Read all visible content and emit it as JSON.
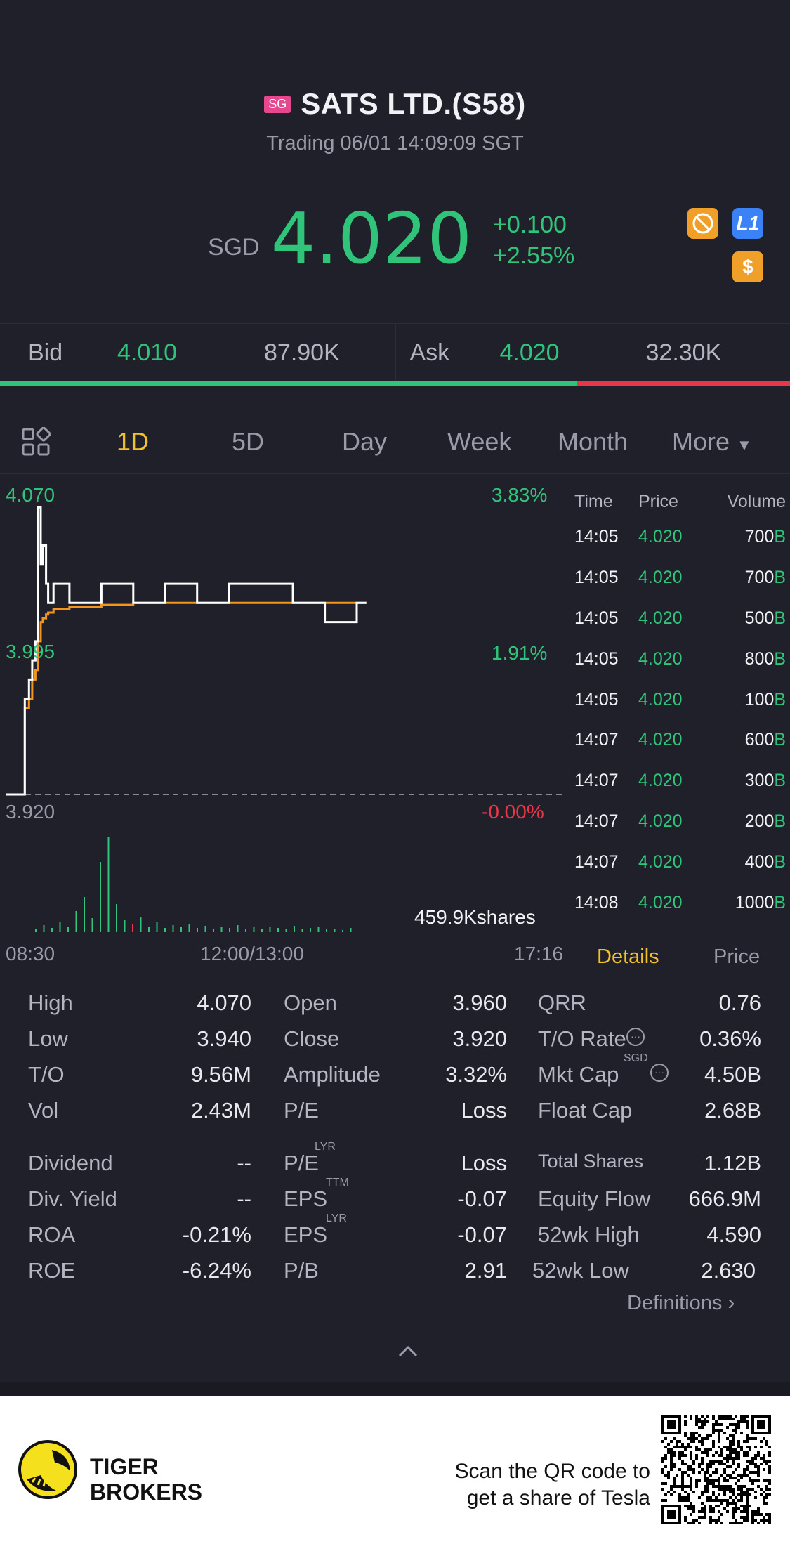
{
  "header": {
    "market_flag": "SG",
    "title": "SATS LTD.(S58)",
    "status": "Trading 06/01 14:09:09 SGT",
    "currency": "SGD",
    "last_price": "4.020",
    "change": "+0.100",
    "change_pct": "+2.55%",
    "badges": [
      {
        "name": "no-short-icon",
        "color": "#f0a028"
      },
      {
        "name": "level1-icon",
        "label": "L1",
        "color": "#3b82f6"
      },
      {
        "name": "dollar-icon",
        "label": "$",
        "color": "#f0a028"
      }
    ]
  },
  "bidask": {
    "bid_label": "Bid",
    "bid_price": "4.010",
    "bid_size": "87.90K",
    "ask_label": "Ask",
    "ask_price": "4.020",
    "ask_size": "32.30K",
    "bid_fraction": 0.73
  },
  "tabs": {
    "grid_icon": "grid-icon",
    "items": [
      "1D",
      "5D",
      "Day",
      "Week",
      "Month",
      "More"
    ],
    "active": "1D"
  },
  "chart": {
    "y_top_price": "4.070",
    "y_mid_price": "3.995",
    "y_base_price": "3.920",
    "y_top_pct": "3.83%",
    "y_mid_pct": "1.91%",
    "y_base_pct": "-0.00%",
    "volume_label": "459.9Kshares",
    "x_start": "08:30",
    "x_mid": "12:00/13:00",
    "x_end": "17:16"
  },
  "chart_data": {
    "type": "line",
    "title": "",
    "xlabel": "",
    "ylabel": "",
    "ylim": [
      3.92,
      4.07
    ],
    "series": [
      {
        "name": "",
        "color": "#ffffff",
        "x": [
          "08:30",
          "08:45",
          "08:48",
          "08:52",
          "08:55",
          "08:58",
          "09:00",
          "09:03",
          "09:05",
          "09:08",
          "09:10",
          "09:15",
          "09:30",
          "10:00",
          "10:30",
          "11:00",
          "11:30",
          "12:00",
          "13:00",
          "13:30",
          "14:00",
          "14:09"
        ],
        "values": [
          3.92,
          3.92,
          3.97,
          3.98,
          3.99,
          4.0,
          4.07,
          4.04,
          4.05,
          4.03,
          4.02,
          4.03,
          4.02,
          4.03,
          4.02,
          4.03,
          4.02,
          4.03,
          4.02,
          4.01,
          4.02,
          4.02
        ]
      },
      {
        "name": "",
        "color": "#f5951e",
        "x": [
          "08:30",
          "08:45",
          "08:48",
          "08:52",
          "08:55",
          "08:58",
          "09:00",
          "09:03",
          "09:05",
          "09:08",
          "09:10",
          "09:15",
          "09:30",
          "10:00",
          "10:30",
          "11:00",
          "11:30",
          "12:00",
          "13:00",
          "13:30",
          "14:00",
          "14:09"
        ],
        "values": [
          3.92,
          3.92,
          3.965,
          3.97,
          3.98,
          3.985,
          4.0,
          4.01,
          4.012,
          4.014,
          4.015,
          4.017,
          4.018,
          4.019,
          4.02,
          4.02,
          4.02,
          4.02,
          4.02,
          4.02,
          4.02,
          4.02
        ]
      }
    ]
  },
  "trades": {
    "headers": [
      "Time",
      "Price",
      "Volume"
    ],
    "rows": [
      {
        "time": "14:05",
        "price": "4.020",
        "vol": "700",
        "side": "B"
      },
      {
        "time": "14:05",
        "price": "4.020",
        "vol": "700",
        "side": "B"
      },
      {
        "time": "14:05",
        "price": "4.020",
        "vol": "500",
        "side": "B"
      },
      {
        "time": "14:05",
        "price": "4.020",
        "vol": "800",
        "side": "B"
      },
      {
        "time": "14:05",
        "price": "4.020",
        "vol": "100",
        "side": "B"
      },
      {
        "time": "14:07",
        "price": "4.020",
        "vol": "600",
        "side": "B"
      },
      {
        "time": "14:07",
        "price": "4.020",
        "vol": "300",
        "side": "B"
      },
      {
        "time": "14:07",
        "price": "4.020",
        "vol": "200",
        "side": "B"
      },
      {
        "time": "14:07",
        "price": "4.020",
        "vol": "400",
        "side": "B"
      },
      {
        "time": "14:08",
        "price": "4.020",
        "vol": "1000",
        "side": "B"
      }
    ],
    "tab_details": "Details",
    "tab_price": "Price"
  },
  "stats": {
    "col1": [
      {
        "label": "High",
        "value": "4.070"
      },
      {
        "label": "Low",
        "value": "3.940"
      },
      {
        "label": "T/O",
        "value": "9.56M"
      },
      {
        "label": "Vol",
        "value": "2.43M"
      },
      {
        "label": "Dividend",
        "value": "--"
      },
      {
        "label": "Div. Yield",
        "value": "--"
      },
      {
        "label": "ROA",
        "value": "-0.21%"
      },
      {
        "label": "ROE",
        "value": "-6.24%"
      }
    ],
    "col2": [
      {
        "label": "Open",
        "value": "3.960"
      },
      {
        "label": "Close",
        "value": "3.920"
      },
      {
        "label": "Amplitude",
        "value": "3.32%"
      },
      {
        "label": "P/E",
        "value": "Loss"
      },
      {
        "label": "P/E",
        "sup": "LYR",
        "value": "Loss"
      },
      {
        "label": "EPS",
        "sup": "TTM",
        "value": "-0.07"
      },
      {
        "label": "EPS",
        "sup": "LYR",
        "value": "-0.07"
      },
      {
        "label": "P/B",
        "value": "2.91"
      }
    ],
    "col3": [
      {
        "label": "QRR",
        "value": "0.76"
      },
      {
        "label": "T/O Rate",
        "value": "0.36%"
      },
      {
        "label": "Mkt Cap",
        "sup": "SGD",
        "value": "4.50B"
      },
      {
        "label": "Float Cap",
        "value": "2.68B"
      },
      {
        "label": "Total Shares",
        "value": "1.12B"
      },
      {
        "label": "Equity Flow",
        "value": "666.9M"
      },
      {
        "label": "52wk High",
        "value": "4.590"
      },
      {
        "label": "52wk Low",
        "value": "2.630"
      }
    ],
    "definitions": "Definitions"
  },
  "footer": {
    "brand_line1": "TIGER",
    "brand_line2": "BROKERS",
    "cta_line1": "Scan the QR code to",
    "cta_line2": "get a share of Tesla"
  }
}
